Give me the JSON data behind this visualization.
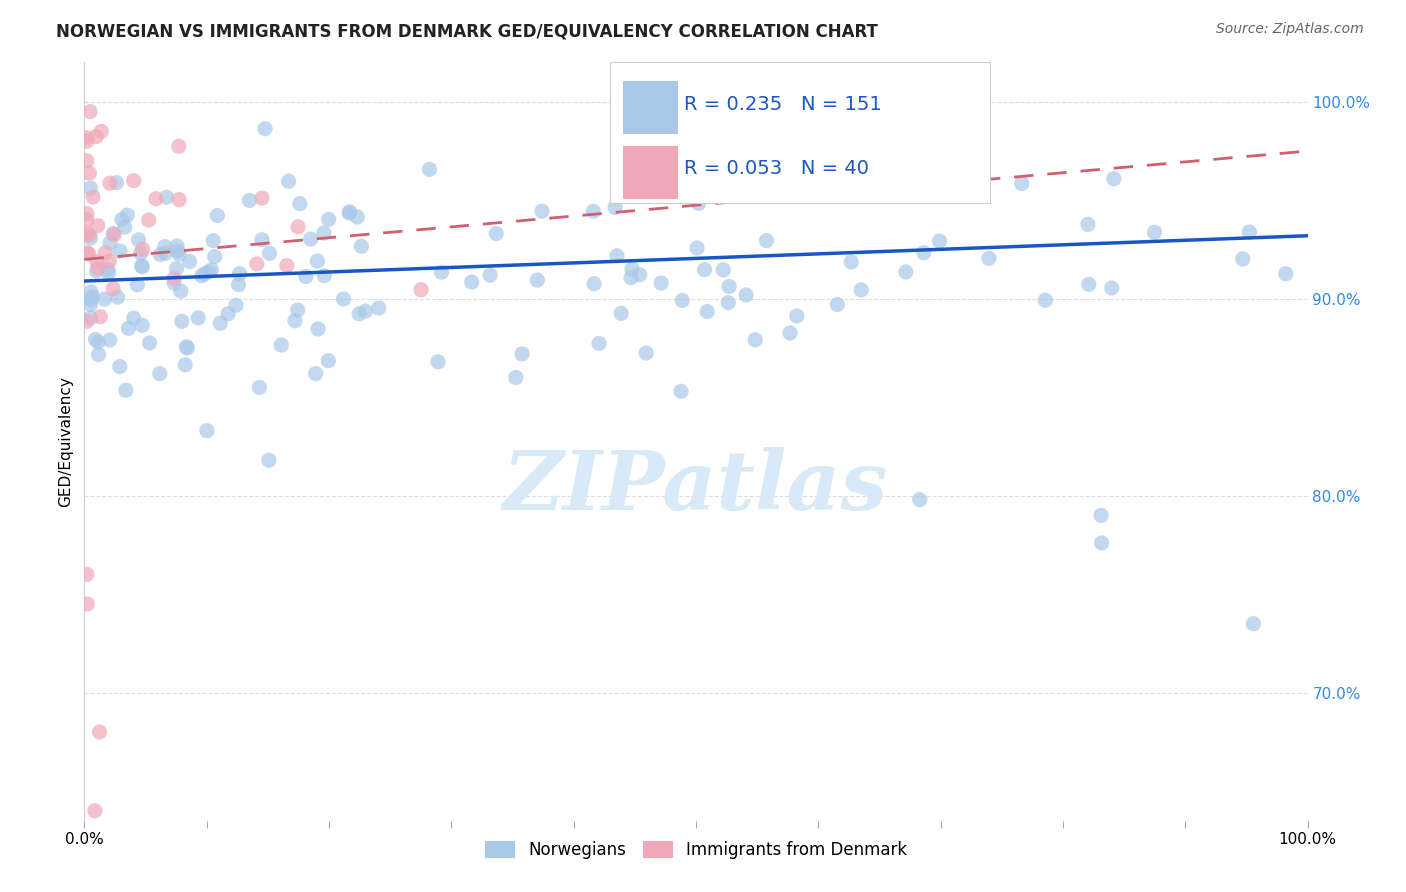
{
  "title": "NORWEGIAN VS IMMIGRANTS FROM DENMARK GED/EQUIVALENCY CORRELATION CHART",
  "source": "Source: ZipAtlas.com",
  "ylabel": "GED/Equivalency",
  "right_yticks": [
    0.7,
    0.8,
    0.9,
    1.0
  ],
  "right_yticklabels": [
    "70.0%",
    "80.0%",
    "90.0%",
    "100.0%"
  ],
  "legend_blue_r": "0.235",
  "legend_blue_n": "151",
  "legend_pink_r": "0.053",
  "legend_pink_n": "40",
  "legend_blue_label": "Norwegians",
  "legend_pink_label": "Immigrants from Denmark",
  "blue_color": "#a8c8e8",
  "pink_color": "#f0a8b8",
  "blue_line_color": "#1a56c4",
  "pink_line_color": "#d06070",
  "watermark_color": "#d8eaf8",
  "xlim": [
    0.0,
    1.0
  ],
  "ylim": [
    0.635,
    1.02
  ],
  "blue_line_x0": 0.0,
  "blue_line_y0": 0.909,
  "blue_line_x1": 1.0,
  "blue_line_y1": 0.932,
  "pink_line_x0": 0.0,
  "pink_line_y0": 0.92,
  "pink_line_x1": 1.0,
  "pink_line_y1": 0.975,
  "background_color": "#ffffff",
  "grid_color": "#dddddd",
  "title_fontsize": 12,
  "source_fontsize": 10,
  "scatter_size": 120,
  "scatter_alpha": 0.7
}
